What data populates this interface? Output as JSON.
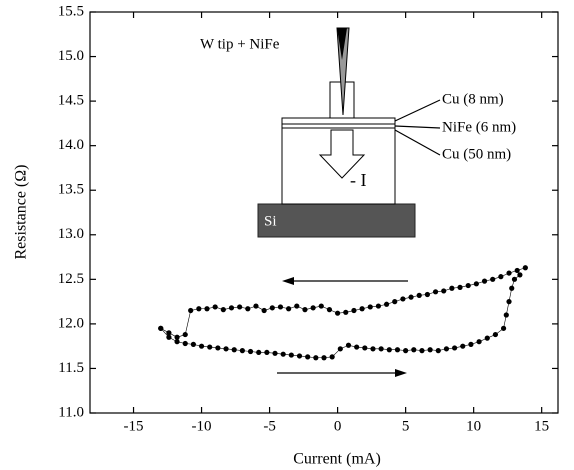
{
  "chart_data": {
    "type": "scatter",
    "xlabel": "Current (mA)",
    "ylabel": "Resistance (Ω)",
    "xlim": [
      -18.2,
      16.2
    ],
    "ylim": [
      11.0,
      15.5
    ],
    "xticks": [
      -15,
      -10,
      -5,
      0,
      5,
      10,
      15
    ],
    "yticks": [
      {
        "value": 11.0,
        "label": "11.0"
      },
      11.5,
      {
        "value": 12.0,
        "label": "12.0"
      },
      12.5,
      {
        "value": 13.0,
        "label": "13.0"
      },
      13.5,
      {
        "value": 14.0,
        "label": "14.0"
      },
      14.5,
      {
        "value": 15.0,
        "label": "15.0"
      },
      15.5
    ],
    "annotations": [
      "W tip + NiFe",
      "Cu (8 nm)",
      "NiFe (6 nm)",
      "Cu (50 nm)",
      "- I",
      "Si"
    ],
    "color": "#000000",
    "series": [
      {
        "x": [
          13.8,
          13.2,
          12.6,
          12,
          11.4,
          10.8,
          10.2,
          9.6,
          9,
          8.4,
          7.8,
          7.2,
          6.6,
          6,
          5.4,
          4.8,
          4.2,
          3.6,
          3,
          2.4,
          1.8,
          1.2,
          0.6,
          0,
          -0.6,
          -1.2,
          -1.8,
          -2.4,
          -3,
          -3.6,
          -4.2,
          -4.8,
          -5.4,
          -6,
          -6.6,
          -7.2,
          -7.8,
          -8.4,
          -9,
          -9.6,
          -10.2,
          -10.8,
          -11.2,
          -11.8,
          -12.4,
          -13
        ],
        "values": [
          12.63,
          12.6,
          12.57,
          12.53,
          12.5,
          12.48,
          12.45,
          12.43,
          12.41,
          12.4,
          12.37,
          12.36,
          12.33,
          12.32,
          12.3,
          12.28,
          12.25,
          12.22,
          12.2,
          12.19,
          12.17,
          12.15,
          12.13,
          12.12,
          12.16,
          12.2,
          12.18,
          12.16,
          12.2,
          12.17,
          12.19,
          12.18,
          12.15,
          12.2,
          12.17,
          12.19,
          12.18,
          12.16,
          12.19,
          12.17,
          12.17,
          12.15,
          11.88,
          11.85,
          11.9,
          11.95
        ]
      },
      {
        "x": [
          -13,
          -12.4,
          -11.8,
          -11.2,
          -10.6,
          -10,
          -9.4,
          -8.8,
          -8.2,
          -7.6,
          -7,
          -6.4,
          -5.8,
          -5.2,
          -4.6,
          -4,
          -3.4,
          -2.8,
          -2.2,
          -1.6,
          -1,
          -0.4,
          0.2,
          0.8,
          1.4,
          2,
          2.6,
          3.2,
          3.8,
          4.4,
          5,
          5.6,
          6.2,
          6.8,
          7.4,
          8,
          8.6,
          9.2,
          9.8,
          10.4,
          11,
          11.6,
          12.2,
          12.4,
          12.6,
          12.8,
          13,
          13.4
        ],
        "values": [
          11.95,
          11.85,
          11.8,
          11.78,
          11.77,
          11.75,
          11.74,
          11.73,
          11.72,
          11.71,
          11.7,
          11.69,
          11.68,
          11.68,
          11.67,
          11.66,
          11.65,
          11.64,
          11.63,
          11.62,
          11.62,
          11.63,
          11.72,
          11.76,
          11.74,
          11.73,
          11.72,
          11.72,
          11.71,
          11.71,
          11.7,
          11.71,
          11.7,
          11.71,
          11.7,
          11.72,
          11.73,
          11.75,
          11.77,
          11.8,
          11.84,
          11.88,
          11.95,
          12.1,
          12.25,
          12.4,
          12.5,
          12.55
        ]
      }
    ]
  }
}
